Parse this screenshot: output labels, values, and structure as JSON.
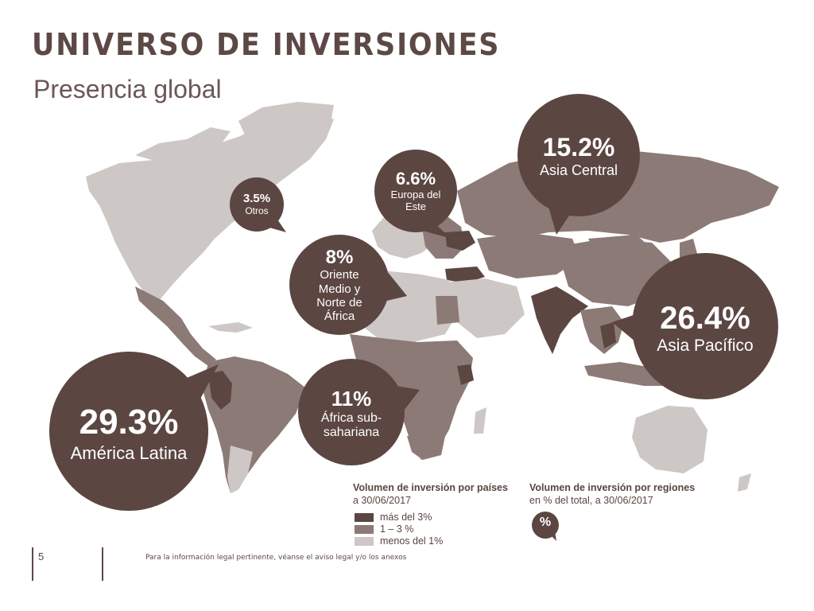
{
  "header": {
    "title": "UNIVERSO DE INVERSIONES",
    "subtitle": "Presencia global"
  },
  "colors": {
    "dark": "#5b4642",
    "medium": "#8c7a77",
    "light": "#cdc7c6",
    "ocean": "#ffffff"
  },
  "regions": [
    {
      "id": "otros",
      "pct": "3.5%",
      "label": "Otros"
    },
    {
      "id": "europa-este",
      "pct": "6.6%",
      "label": "Europa del Este"
    },
    {
      "id": "asia-central",
      "pct": "15.2%",
      "label": "Asia Central"
    },
    {
      "id": "oriente-medio",
      "pct": "8%",
      "label": "Oriente Medio y Norte de África"
    },
    {
      "id": "asia-pacifico",
      "pct": "26.4%",
      "label": "Asia Pacífico"
    },
    {
      "id": "africa-sub",
      "pct": "11%",
      "label": "África sub-sahariana"
    },
    {
      "id": "america-latina",
      "pct": "29.3%",
      "label": "América Latina"
    }
  ],
  "legend": {
    "countries_title": "Volumen de inversión por países",
    "countries_date": "a 30/06/2017",
    "items": [
      "más del 3%",
      "1 – 3 %",
      "menos del 1%"
    ],
    "regions_title": "Volumen de inversión por regiones",
    "regions_sub": "en % del total, a 30/06/2017",
    "regions_symbol": "%"
  },
  "footer": {
    "page": "5",
    "disclaimer": "Para la información legal pertinente, véanse el aviso legal y/o los anexos"
  }
}
